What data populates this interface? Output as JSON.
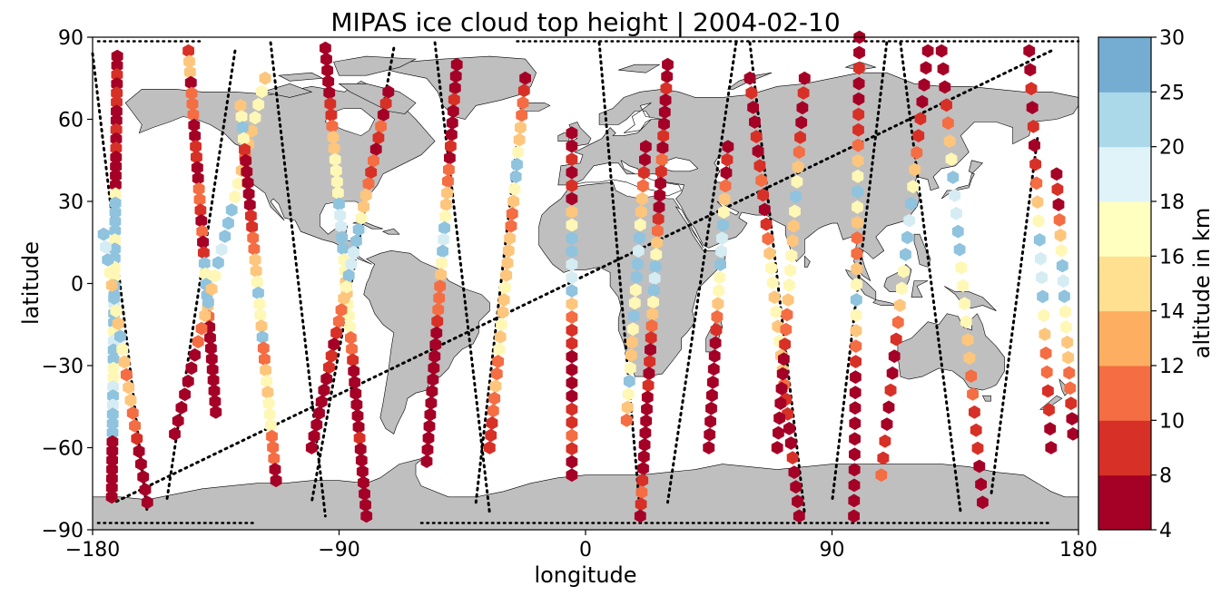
{
  "title": "MIPAS ice cloud top height | 2004-02-10",
  "x_axis": {
    "label": "longitude",
    "range": [
      -180,
      180
    ],
    "ticks": [
      {
        "value": -180,
        "label": "−180"
      },
      {
        "value": -90,
        "label": "−90"
      },
      {
        "value": 0,
        "label": "0"
      },
      {
        "value": 90,
        "label": "90"
      },
      {
        "value": 180,
        "label": "180"
      }
    ]
  },
  "y_axis": {
    "label": "latitude",
    "range": [
      -90,
      90
    ],
    "ticks": [
      {
        "value": 90,
        "label": "90"
      },
      {
        "value": 60,
        "label": "60"
      },
      {
        "value": 30,
        "label": "30"
      },
      {
        "value": 0,
        "label": "0"
      },
      {
        "value": -30,
        "label": "−30"
      },
      {
        "value": -60,
        "label": "−60"
      },
      {
        "value": -90,
        "label": "−90"
      }
    ]
  },
  "colorbar": {
    "label": "altitude in km",
    "bounds": [
      4,
      8,
      10,
      12,
      14,
      16,
      18,
      20,
      25,
      30
    ],
    "tick_labels": [
      "4",
      "8",
      "10",
      "12",
      "14",
      "16",
      "18",
      "20",
      "25",
      "30"
    ],
    "colors": [
      "#a50026",
      "#d73027",
      "#f46d43",
      "#fdae61",
      "#fee090",
      "#ffffbf",
      "#e0f3f8",
      "#abd9e9",
      "#74add1",
      "#4575b4",
      "#313695"
    ]
  },
  "colors": {
    "land": "#bfbfbf",
    "coast": "#000000",
    "orbit_track": "#000000",
    "h_dark_red": "#a50026",
    "h_red": "#d73027",
    "h_orange": "#f46d43",
    "h_light_orange": "#fdc67c",
    "h_yellow": "#fff7b5",
    "h_pale_blue": "#d6ecf3",
    "h_blue": "#8fc3de"
  },
  "chart_data": {
    "type": "scatter",
    "title": "MIPAS ice cloud top height | 2004-02-10",
    "xlabel": "longitude",
    "ylabel": "latitude",
    "xlim": [
      -180,
      180
    ],
    "ylim": [
      -90,
      90
    ],
    "grid": false,
    "colorbar_label": "altitude in km",
    "colorbar_bounds": [
      4,
      8,
      10,
      12,
      14,
      16,
      18,
      20,
      25,
      30
    ],
    "orbit_tracks": [
      {
        "lat_top": 85,
        "lat_bottom": -80,
        "lon_top": 170,
        "lon_bottom": -172
      },
      {
        "lat_top": 84,
        "lat_bottom": -84,
        "lon_top": -180,
        "lon_bottom": -160
      },
      {
        "lat_top": 85,
        "lat_bottom": -80,
        "lon_top": -128,
        "lon_bottom": -153
      },
      {
        "lat_top": 88,
        "lat_bottom": -85,
        "lon_top": -115,
        "lon_bottom": -95
      },
      {
        "lat_top": 86,
        "lat_bottom": -80,
        "lon_top": -70,
        "lon_bottom": -100
      },
      {
        "lat_top": 88,
        "lat_bottom": -84,
        "lon_top": -55,
        "lon_bottom": -35
      },
      {
        "lat_top": 52,
        "lat_bottom": -80,
        "lon_top": -25,
        "lon_bottom": -40
      },
      {
        "lat_top": 88,
        "lat_bottom": -84,
        "lon_top": 5,
        "lon_bottom": 20
      },
      {
        "lat_top": 88,
        "lat_bottom": -80,
        "lon_top": 55,
        "lon_bottom": 30
      },
      {
        "lat_top": 88,
        "lat_bottom": -84,
        "lon_top": 60,
        "lon_bottom": 80
      },
      {
        "lat_top": 88,
        "lat_bottom": -80,
        "lon_top": 110,
        "lon_bottom": 90
      },
      {
        "lat_top": 88,
        "lat_bottom": -84,
        "lon_top": 115,
        "lon_bottom": 137
      },
      {
        "lat_top": 53,
        "lat_bottom": -78,
        "lon_top": 165,
        "lon_bottom": 148
      }
    ],
    "hex_tracks": [
      {
        "lat_top": 83,
        "lat_bottom": -78,
        "lon_top": -171,
        "lon_bottom": -173,
        "cats": [
          0,
          0,
          1,
          0,
          1,
          1,
          0,
          0,
          1,
          0,
          1,
          0,
          0,
          0,
          0,
          4,
          5,
          5,
          5,
          5,
          4,
          5,
          5,
          4,
          4,
          5,
          5,
          6,
          5,
          5,
          4,
          6,
          5,
          5,
          4,
          4,
          6,
          5,
          6,
          5,
          5,
          5,
          0,
          0,
          0,
          0,
          0,
          0,
          0
        ]
      },
      {
        "lat_top": 18,
        "lat_bottom": -80,
        "lon_top": -176,
        "lon_bottom": -160,
        "cats": [
          5,
          6,
          5,
          4,
          3,
          5,
          4,
          3,
          5,
          4,
          3,
          2,
          3,
          3,
          2,
          2,
          1,
          0,
          0,
          0,
          0,
          0
        ]
      },
      {
        "lat_top": 85,
        "lat_bottom": -47,
        "lon_top": -145,
        "lon_bottom": -135,
        "cats": [
          1,
          3,
          3,
          0,
          2,
          2,
          2,
          0,
          0,
          1,
          1,
          0,
          0,
          2,
          2,
          1,
          0,
          2,
          0,
          1,
          5,
          4,
          5,
          5,
          3,
          2,
          0,
          0,
          0,
          0,
          0,
          0,
          0,
          0,
          0
        ]
      },
      {
        "lat_top": 75,
        "lat_bottom": -55,
        "lon_top": -117,
        "lon_bottom": -150,
        "cats": [
          3,
          4,
          4,
          4,
          3,
          3,
          2,
          3,
          4,
          4,
          5,
          5,
          5,
          6,
          5,
          4,
          3,
          5,
          3,
          2,
          2,
          0,
          0,
          0,
          0,
          0,
          0,
          0
        ]
      },
      {
        "lat_top": 65,
        "lat_bottom": -72,
        "lon_top": -126,
        "lon_bottom": -113,
        "cats": [
          3,
          4,
          5,
          4,
          1,
          0,
          0,
          0,
          0,
          0,
          1,
          1,
          2,
          2,
          3,
          3,
          4,
          5,
          4,
          4,
          3,
          5,
          2,
          2,
          3,
          4,
          3,
          4,
          4,
          4,
          2,
          2,
          2,
          0,
          0
        ]
      },
      {
        "lat_top": 86,
        "lat_bottom": -85,
        "lon_top": -95,
        "lon_bottom": -80,
        "cats": [
          0,
          0,
          0,
          0,
          0,
          1,
          1,
          2,
          3,
          3,
          4,
          4,
          4,
          4,
          5,
          6,
          6,
          5,
          5,
          4,
          4,
          3,
          3,
          4,
          4,
          4,
          2,
          2,
          1,
          0,
          0,
          0,
          0,
          0,
          0,
          1,
          0,
          0,
          0,
          0,
          0,
          0,
          0
        ]
      },
      {
        "lat_top": 70,
        "lat_bottom": -60,
        "lon_top": -72,
        "lon_bottom": -100,
        "cats": [
          0,
          1,
          0,
          2,
          1,
          0,
          2,
          1,
          2,
          3,
          3,
          4,
          5,
          5,
          6,
          6,
          5,
          4,
          3,
          2,
          2,
          1,
          0,
          1,
          1,
          0,
          0,
          0,
          0,
          0,
          0,
          0
        ]
      },
      {
        "lat_top": 80,
        "lat_bottom": -65,
        "lon_top": -47,
        "lon_bottom": -58,
        "cats": [
          0,
          0,
          0,
          1,
          0,
          0,
          0,
          1,
          0,
          2,
          2,
          3,
          3,
          4,
          5,
          6,
          5,
          4,
          3,
          2,
          2,
          2,
          1,
          0,
          0,
          0,
          0,
          0,
          0,
          0,
          0,
          0,
          0,
          0,
          0
        ]
      },
      {
        "lat_top": 75,
        "lat_bottom": -60,
        "lon_top": -22,
        "lon_bottom": -35,
        "cats": [
          0,
          1,
          2,
          2,
          3,
          3,
          4,
          5,
          5,
          4,
          3,
          2,
          2,
          3,
          3,
          3,
          3,
          4,
          3,
          3,
          4,
          3,
          4,
          2,
          2,
          3,
          2,
          2,
          1,
          1,
          1
        ]
      },
      {
        "lat_top": 55,
        "lat_bottom": -70,
        "lon_top": -5,
        "lon_bottom": -5,
        "cats": [
          0,
          0,
          1,
          0,
          1,
          0,
          3,
          4,
          5,
          5,
          6,
          6,
          5,
          3,
          2,
          1,
          1,
          0,
          0,
          0,
          0,
          1,
          1,
          2,
          1,
          0,
          0
        ]
      },
      {
        "lat_top": 50,
        "lat_bottom": -50,
        "lon_top": 22,
        "lon_bottom": 15,
        "cats": [
          0,
          0,
          1,
          2,
          3,
          3,
          4,
          5,
          6,
          5,
          5,
          4,
          4,
          5,
          4,
          3,
          3,
          4,
          5,
          4,
          3,
          2
        ]
      },
      {
        "lat_top": 80,
        "lat_bottom": -85,
        "lon_top": 30,
        "lon_bottom": 20,
        "cats": [
          0,
          0,
          1,
          0,
          0,
          0,
          1,
          0,
          2,
          1,
          0,
          0,
          0,
          1,
          2,
          3,
          4,
          5,
          6,
          5,
          4,
          3,
          2,
          1,
          0,
          1,
          0,
          1,
          0,
          0,
          0,
          0,
          0,
          0,
          0,
          1,
          2,
          1,
          0
        ]
      },
      {
        "lat_top": 50,
        "lat_bottom": -60,
        "lon_top": 52,
        "lon_bottom": 45,
        "cats": [
          0,
          1,
          0,
          2,
          3,
          4,
          5,
          6,
          6,
          5,
          4,
          4,
          3,
          2,
          1,
          0,
          0,
          0,
          0,
          0,
          0,
          0,
          0,
          0
        ]
      },
      {
        "lat_top": 75,
        "lat_bottom": -85,
        "lon_top": 60,
        "lon_bottom": 78,
        "cats": [
          0,
          1,
          0,
          0,
          1,
          0,
          1,
          2,
          1,
          0,
          1,
          2,
          3,
          4,
          4,
          3,
          4,
          3,
          4,
          3,
          3,
          2,
          1,
          1,
          0,
          0,
          1,
          0,
          0,
          0,
          0
        ]
      },
      {
        "lat_top": 75,
        "lat_bottom": -60,
        "lon_top": 80,
        "lon_bottom": 70,
        "cats": [
          0,
          1,
          0,
          0,
          1,
          2,
          3,
          4,
          5,
          4,
          3,
          3,
          4,
          4,
          4,
          3,
          2,
          2,
          1,
          0,
          0,
          0,
          0,
          0,
          0,
          0
        ]
      },
      {
        "lat_top": 90,
        "lat_bottom": -85,
        "lon_top": 100,
        "lon_bottom": 98,
        "cats": [
          0,
          0,
          1,
          0,
          0,
          1,
          1,
          2,
          3,
          4,
          5,
          4,
          3,
          2,
          2,
          3,
          4,
          5,
          4,
          3,
          2,
          1,
          0,
          0,
          0,
          0,
          0,
          0,
          0,
          0,
          0,
          0
        ]
      },
      {
        "lat_top": 85,
        "lat_bottom": -70,
        "lon_top": 125,
        "lon_bottom": 108,
        "cats": [
          0,
          0,
          0,
          0,
          1,
          1,
          2,
          3,
          4,
          5,
          6,
          5,
          5,
          4,
          4,
          3,
          2,
          1,
          0,
          0,
          1,
          0,
          0,
          1,
          1,
          2
        ]
      },
      {
        "lat_top": 85,
        "lat_bottom": -80,
        "lon_top": 130,
        "lon_bottom": 145,
        "cats": [
          0,
          0,
          0,
          1,
          2,
          3,
          4,
          5,
          6,
          6,
          5,
          5,
          4,
          4,
          4,
          4,
          3,
          3,
          2,
          2,
          1,
          1,
          1,
          0,
          0,
          0
        ]
      },
      {
        "lat_top": 85,
        "lat_bottom": -60,
        "lon_top": 162,
        "lon_bottom": 170,
        "cats": [
          0,
          0,
          1,
          0,
          1,
          0,
          1,
          2,
          3,
          4,
          5,
          6,
          6,
          5,
          4,
          3,
          2,
          2,
          1,
          1,
          0,
          0
        ]
      },
      {
        "lat_top": 40,
        "lat_bottom": -55,
        "lon_top": 172,
        "lon_bottom": 178,
        "cats": [
          0,
          1,
          0,
          2,
          3,
          4,
          5,
          6,
          5,
          4,
          4,
          3,
          3,
          2,
          2,
          1,
          0,
          0
        ]
      }
    ]
  }
}
